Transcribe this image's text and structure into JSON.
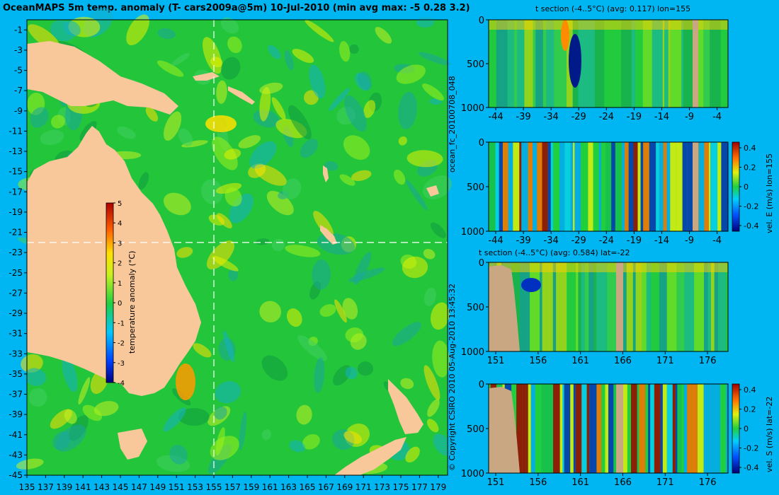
{
  "title": "OceanMAPS 5m temp. anomaly (T- cars2009a@5m) 10-Jul-2010 (min avg max: -5 0.28 3.2)",
  "side_label_forecast": "ocean_fc_20100708_048",
  "side_label_copyright": "© Copyright CSIRO 2010   05-Aug-2010 13:45:32",
  "colors": {
    "background": "#00b6f2",
    "land": "#f8c79a",
    "section_land": "#c9a783",
    "ocean": "#23c63a"
  },
  "chart_data": [
    {
      "type": "heatmap",
      "name": "map",
      "colorbar_label": "temperature anomaly (°C)",
      "colorbar_ticks": [
        5,
        4,
        3,
        2,
        1,
        0,
        -1,
        -2,
        -3,
        -4
      ],
      "vmin": -4,
      "vmax": 5,
      "x_ticks": [
        135,
        137,
        139,
        141,
        143,
        145,
        147,
        149,
        151,
        153,
        155,
        157,
        159,
        161,
        163,
        165,
        167,
        169,
        171,
        173,
        175,
        177,
        179
      ],
      "y_ticks": [
        -1,
        -3,
        -5,
        -7,
        -9,
        -11,
        -13,
        -15,
        -17,
        -19,
        -21,
        -23,
        -25,
        -27,
        -29,
        -31,
        -33,
        -35,
        -37,
        -39,
        -41,
        -43,
        -45
      ],
      "xlim": [
        135,
        180
      ],
      "ylim": [
        -45,
        0
      ],
      "crosshair": {
        "lon": 155,
        "lat": -22
      }
    },
    {
      "type": "heatmap",
      "name": "panel1",
      "title": "t section (-4..5°C) (avg: 0.117) lon=155",
      "x_ticks": [
        "-44",
        "-39",
        "-34",
        "-29",
        "-24",
        "-19",
        "-14",
        "-9",
        "-4"
      ],
      "y_ticks": [
        "0",
        "500",
        "1000"
      ]
    },
    {
      "type": "heatmap",
      "name": "panel2",
      "title": "",
      "x_ticks": [
        "-44",
        "-39",
        "-34",
        "-29",
        "-24",
        "-19",
        "-14",
        "-9",
        "-4"
      ],
      "y_ticks": [
        "0",
        "500",
        "1000"
      ],
      "colorbar_label": "vel. E (m/s) lon=155",
      "colorbar_ticks": [
        "0.4",
        "0.2",
        "0",
        "-0.2",
        "-0.4"
      ]
    },
    {
      "type": "heatmap",
      "name": "panel3",
      "title": "t section (-4..5°C) (avg: 0.584) lat=-22",
      "x_ticks": [
        "151",
        "156",
        "161",
        "166",
        "171",
        "176"
      ],
      "y_ticks": [
        "0",
        "500",
        "1000"
      ]
    },
    {
      "type": "heatmap",
      "name": "panel4",
      "title": "",
      "x_ticks": [
        "151",
        "156",
        "161",
        "166",
        "171",
        "176"
      ],
      "y_ticks": [
        "0",
        "500",
        "1000"
      ],
      "colorbar_label": "vel. S (m/s) lat=-22",
      "colorbar_ticks": [
        "0.4",
        "0.2",
        "0",
        "-0.2",
        "-0.4"
      ]
    }
  ]
}
